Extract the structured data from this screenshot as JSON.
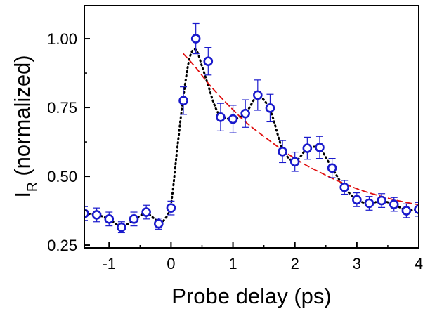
{
  "chart_data": {
    "type": "scatter",
    "xlabel": "Probe delay (ps)",
    "ylabel": {
      "main": "I",
      "subscript": "R",
      "rest": " (normalized)"
    },
    "xlim": [
      -1.4,
      4.0
    ],
    "ylim": [
      0.24,
      1.12
    ],
    "xticks": [
      -1,
      0,
      1,
      2,
      3,
      4
    ],
    "xtick_labels": [
      "-1",
      "0",
      "1",
      "2",
      "3",
      "4"
    ],
    "yticks": [
      0.25,
      0.5,
      0.75,
      1.0
    ],
    "ytick_labels": [
      "0.25",
      "0.50",
      "0.75",
      "1.00"
    ],
    "grid": false,
    "colors": {
      "points": "#1a1acc",
      "dotted": "#000000",
      "dashed": "#e01010"
    },
    "series": [
      {
        "style": "markers-with-error-bars",
        "x": [
          -1.4,
          -1.2,
          -1.0,
          -0.8,
          -0.6,
          -0.4,
          -0.2,
          0.0,
          0.2,
          0.4,
          0.6,
          0.8,
          1.0,
          1.2,
          1.4,
          1.6,
          1.8,
          2.0,
          2.2,
          2.4,
          2.6,
          2.8,
          3.0,
          3.2,
          3.4,
          3.6,
          3.8,
          4.0
        ],
        "y": [
          0.365,
          0.36,
          0.345,
          0.315,
          0.345,
          0.37,
          0.328,
          0.385,
          0.775,
          1.0,
          0.918,
          0.715,
          0.708,
          0.728,
          0.795,
          0.748,
          0.59,
          0.553,
          0.602,
          0.605,
          0.53,
          0.46,
          0.415,
          0.402,
          0.412,
          0.398,
          0.375,
          0.38
        ],
        "err": [
          0.025,
          0.025,
          0.025,
          0.02,
          0.025,
          0.025,
          0.02,
          0.025,
          0.05,
          0.055,
          0.05,
          0.05,
          0.05,
          0.05,
          0.055,
          0.05,
          0.04,
          0.035,
          0.04,
          0.04,
          0.035,
          0.025,
          0.025,
          0.025,
          0.025,
          0.025,
          0.025,
          0.025
        ]
      },
      {
        "style": "dotted-line",
        "x": [
          -1.4,
          -1.2,
          -1.0,
          -0.8,
          -0.6,
          -0.4,
          -0.2,
          -0.1,
          0.0,
          0.1,
          0.2,
          0.3,
          0.4,
          0.5,
          0.6,
          0.7,
          0.8,
          1.0,
          1.2,
          1.4,
          1.6,
          1.8,
          2.0,
          2.2,
          2.4,
          2.6,
          2.8,
          3.0,
          3.2,
          3.4,
          3.6,
          3.8,
          4.0
        ],
        "y": [
          0.365,
          0.36,
          0.345,
          0.318,
          0.342,
          0.365,
          0.335,
          0.345,
          0.4,
          0.6,
          0.79,
          0.93,
          0.96,
          0.9,
          0.83,
          0.76,
          0.72,
          0.708,
          0.728,
          0.79,
          0.74,
          0.6,
          0.555,
          0.6,
          0.6,
          0.53,
          0.46,
          0.415,
          0.402,
          0.41,
          0.398,
          0.377,
          0.38
        ]
      },
      {
        "style": "dashed-line",
        "x": [
          0.2,
          0.4,
          0.6,
          0.8,
          1.0,
          1.2,
          1.4,
          1.6,
          1.8,
          2.0,
          2.2,
          2.4,
          2.6,
          2.8,
          3.0,
          3.2,
          3.4,
          3.6,
          3.8,
          4.0
        ],
        "y": [
          0.945,
          0.895,
          0.838,
          0.788,
          0.742,
          0.698,
          0.662,
          0.628,
          0.595,
          0.565,
          0.538,
          0.515,
          0.493,
          0.473,
          0.455,
          0.44,
          0.427,
          0.415,
          0.405,
          0.397
        ]
      }
    ]
  }
}
